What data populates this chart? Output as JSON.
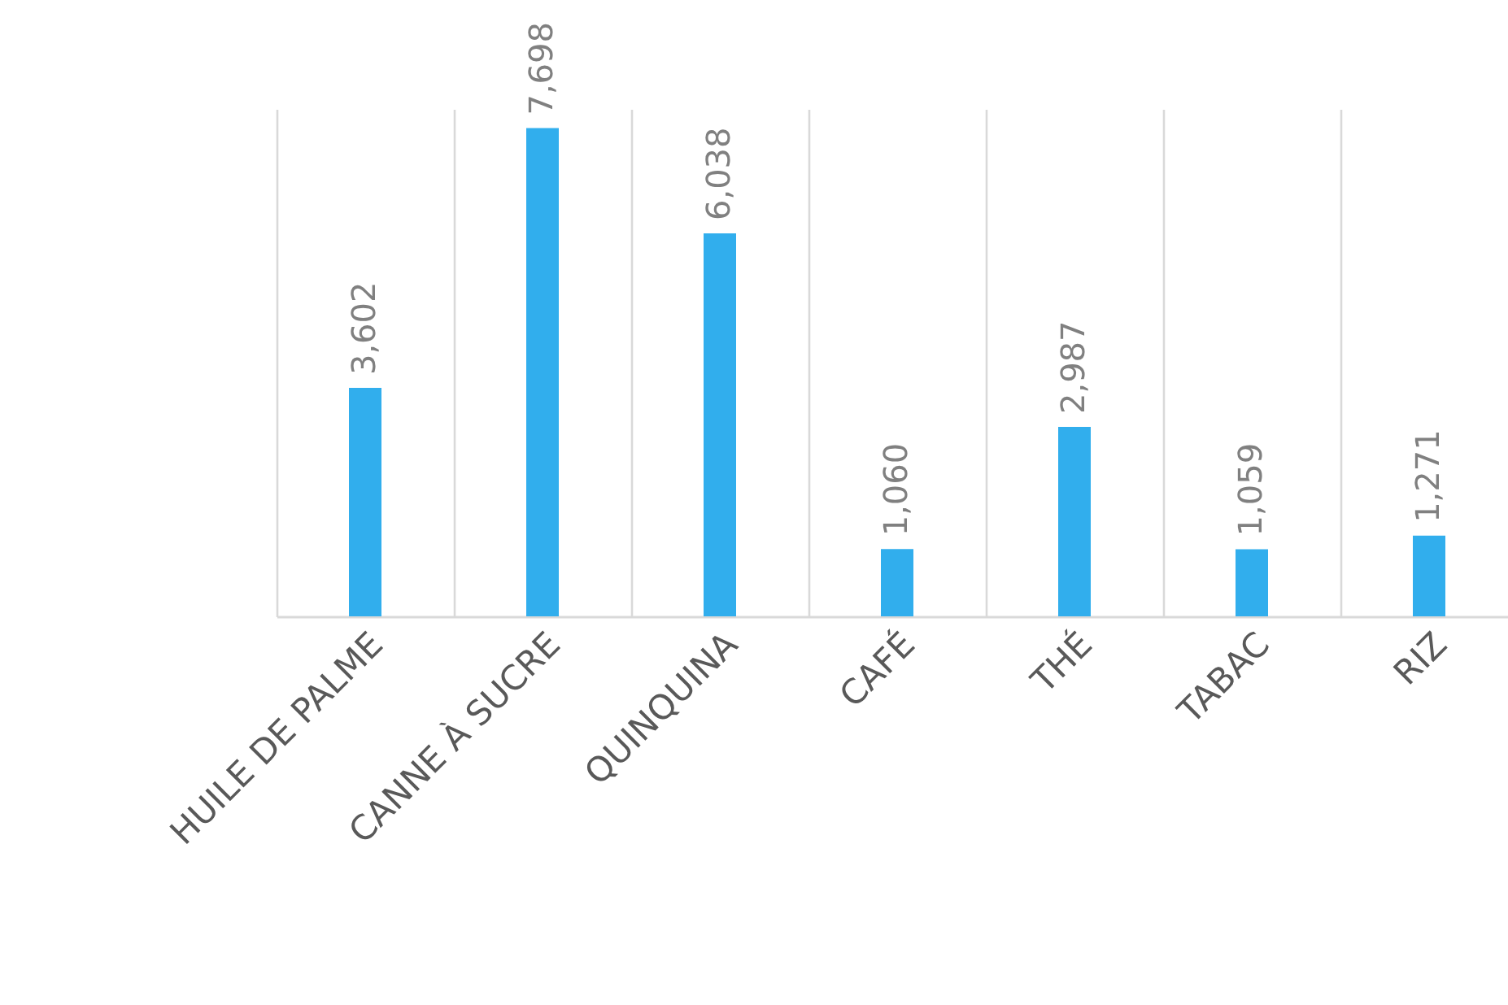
{
  "chart_data": {
    "type": "bar",
    "categories": [
      "HUILE DE PALME",
      "CANNE À SUCRE",
      "QUINQUINA",
      "CAFÉ",
      "THÉ",
      "TABAC",
      "RIZ"
    ],
    "values": [
      3602,
      7698,
      6038,
      1060,
      2987,
      1059,
      1271
    ],
    "value_labels": [
      "3,602",
      "7,698",
      "6,038",
      "1,060",
      "2,987",
      "1,059",
      "1,271"
    ],
    "color": "#31aeed",
    "grid": "x"
  }
}
